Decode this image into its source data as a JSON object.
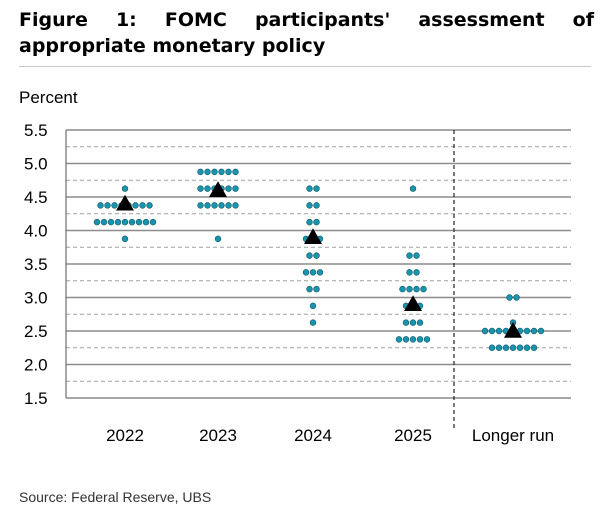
{
  "header": {
    "title": "Figure 1: FOMC participants' assessment of appropriate monetary policy"
  },
  "footer": {
    "source": "Source: Federal Reserve, UBS"
  },
  "colors": {
    "dot": "#1a93ac",
    "median": "#000000",
    "gridline": "#8c8c8c",
    "gridline_dashed": "#a0a0a0"
  },
  "chart_data": {
    "type": "scatter",
    "title": "",
    "ylabel": "Percent",
    "ylim": [
      1.5,
      5.5
    ],
    "yticks": [
      "5.5",
      "5.0",
      "4.5",
      "4.0",
      "3.5",
      "3.0",
      "2.5",
      "2.0",
      "1.5"
    ],
    "grid": true,
    "categories": [
      "2022",
      "2023",
      "2024",
      "2025",
      "Longer run"
    ],
    "series": [
      {
        "marker": "dot",
        "points": [
          {
            "category": "2022",
            "values": [
              {
                "y": 4.625,
                "count": 1
              },
              {
                "y": 4.375,
                "count": 8
              },
              {
                "y": 4.125,
                "count": 9
              },
              {
                "y": 3.875,
                "count": 1
              }
            ]
          },
          {
            "category": "2023",
            "values": [
              {
                "y": 4.875,
                "count": 6
              },
              {
                "y": 4.625,
                "count": 6
              },
              {
                "y": 4.375,
                "count": 6
              },
              {
                "y": 3.875,
                "count": 1
              }
            ]
          },
          {
            "category": "2024",
            "values": [
              {
                "y": 4.625,
                "count": 2
              },
              {
                "y": 4.375,
                "count": 2
              },
              {
                "y": 4.125,
                "count": 2
              },
              {
                "y": 3.875,
                "count": 3
              },
              {
                "y": 3.625,
                "count": 2
              },
              {
                "y": 3.375,
                "count": 3
              },
              {
                "y": 3.125,
                "count": 2
              },
              {
                "y": 2.875,
                "count": 1
              },
              {
                "y": 2.625,
                "count": 1
              }
            ]
          },
          {
            "category": "2025",
            "values": [
              {
                "y": 4.625,
                "count": 1
              },
              {
                "y": 3.625,
                "count": 2
              },
              {
                "y": 3.375,
                "count": 2
              },
              {
                "y": 3.125,
                "count": 4
              },
              {
                "y": 2.875,
                "count": 3
              },
              {
                "y": 2.625,
                "count": 3
              },
              {
                "y": 2.375,
                "count": 5
              }
            ]
          },
          {
            "category": "Longer run",
            "values": [
              {
                "y": 3.0,
                "count": 2
              },
              {
                "y": 2.625,
                "count": 1
              },
              {
                "y": 2.5,
                "count": 9
              },
              {
                "y": 2.25,
                "count": 7
              }
            ]
          }
        ]
      },
      {
        "marker": "triangle",
        "points": [
          {
            "category": "2022",
            "y": 4.4
          },
          {
            "category": "2023",
            "y": 4.6
          },
          {
            "category": "2024",
            "y": 3.9
          },
          {
            "category": "2025",
            "y": 2.9
          },
          {
            "category": "Longer run",
            "y": 2.5
          }
        ]
      }
    ],
    "separator_before": "Longer run"
  }
}
